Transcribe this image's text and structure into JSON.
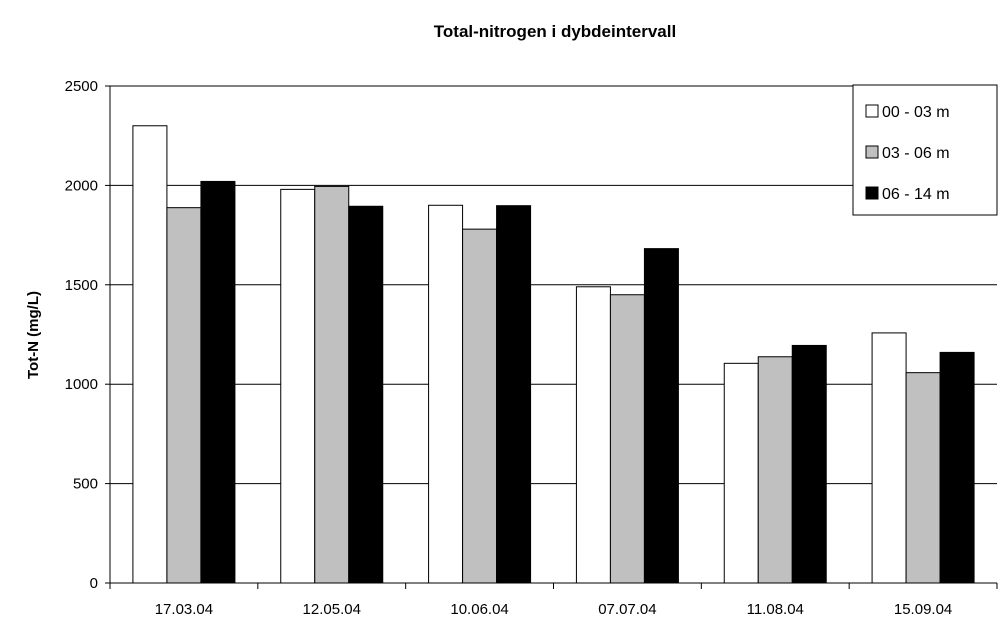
{
  "chart_data": {
    "type": "bar",
    "title": "Total-nitrogen i dybdeintervall",
    "xlabel": "",
    "ylabel": "Tot-N (mg/L)",
    "ylim": [
      0,
      2500
    ],
    "yticks": [
      0,
      500,
      1000,
      1500,
      2000,
      2500
    ],
    "grid": true,
    "legend_position": "top-right",
    "categories": [
      "17.03.04",
      "12.05.04",
      "10.06.04",
      "07.07.04",
      "11.08.04",
      "15.09.04"
    ],
    "series": [
      {
        "name": "00 - 03 m",
        "color": "#ffffff",
        "values": [
          2300,
          1980,
          1900,
          1490,
          1105,
          1258
        ]
      },
      {
        "name": "03 - 06 m",
        "color": "#c0c0c0",
        "values": [
          1888,
          1995,
          1780,
          1450,
          1138,
          1058
        ]
      },
      {
        "name": "06 - 14 m",
        "color": "#000000",
        "values": [
          2020,
          1895,
          1898,
          1682,
          1195,
          1160
        ]
      }
    ]
  }
}
